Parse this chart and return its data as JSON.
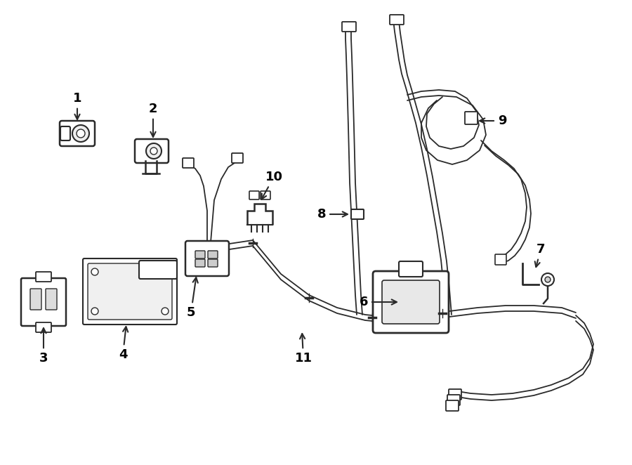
{
  "background_color": "#ffffff",
  "line_color": "#2a2a2a",
  "label_color": "#000000",
  "fig_width": 9.0,
  "fig_height": 6.62,
  "dpi": 100
}
